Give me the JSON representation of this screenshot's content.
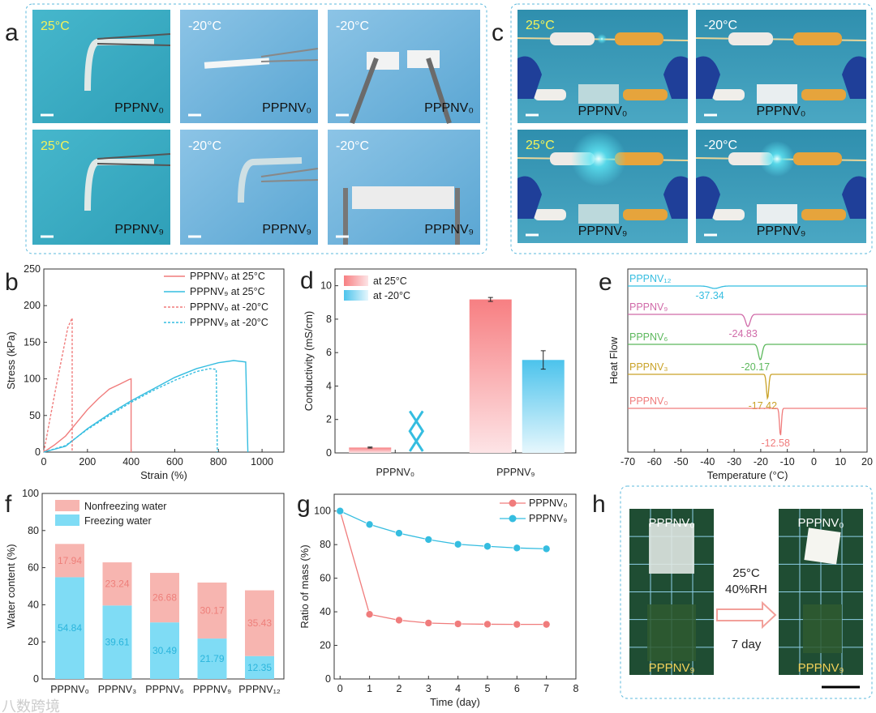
{
  "panel_letters": {
    "a": "a",
    "b": "b",
    "c": "c",
    "d": "d",
    "e": "e",
    "f": "f",
    "g": "g",
    "h": "h"
  },
  "panel_a": {
    "photos": [
      {
        "temp": "25°C",
        "sample": "PPPNV₀"
      },
      {
        "temp": "-20°C",
        "sample": "PPPNV₀"
      },
      {
        "temp": "-20°C",
        "sample": "PPPNV₀"
      },
      {
        "temp": "25°C",
        "sample": "PPPNV₉"
      },
      {
        "temp": "-20°C",
        "sample": "PPPNV₉"
      },
      {
        "temp": "-20°C",
        "sample": "PPPNV₉"
      }
    ]
  },
  "panel_c": {
    "photos": [
      {
        "temp": "25°C",
        "sample": "PPPNV₀"
      },
      {
        "temp": "-20°C",
        "sample": "PPPNV₀"
      },
      {
        "temp": "25°C",
        "sample": "PPPNV₉"
      },
      {
        "temp": "-20°C",
        "sample": "PPPNV₉"
      }
    ]
  },
  "panel_h": {
    "left_top": "PPPNV₀",
    "left_bottom": "PPPNV₉",
    "right_top": "PPPNV₀",
    "right_bottom": "PPPNV₉",
    "condition_temp": "25°C",
    "condition_rh": "40%RH",
    "duration": "7 day"
  },
  "watermark": "八数跨境",
  "colors": {
    "red": "#f07c7c",
    "blue": "#35bde0",
    "border": "#5bb8dc",
    "pink": "#d06aa8",
    "green": "#5cb85c",
    "gold": "#c9a227"
  },
  "chart_data": [
    {
      "id": "b",
      "type": "line",
      "xlabel": "Strain (%)",
      "ylabel": "Stress (kPa)",
      "xlim": [
        0,
        1100
      ],
      "ylim": [
        0,
        250
      ],
      "xticks": [
        0,
        200,
        400,
        600,
        800,
        1000
      ],
      "yticks": [
        0,
        50,
        100,
        150,
        200,
        250
      ],
      "legend_position": "top-right",
      "series": [
        {
          "name": "PPPNV₀ at 25°C",
          "color": "#f07c7c",
          "dash": false,
          "x": [
            0,
            50,
            100,
            150,
            200,
            250,
            300,
            350,
            390,
            400,
            400
          ],
          "y": [
            0,
            10,
            22,
            40,
            58,
            73,
            86,
            93,
            99,
            100,
            0
          ]
        },
        {
          "name": "PPPNV₉ at 25°C",
          "color": "#35bde0",
          "dash": false,
          "x": [
            0,
            100,
            200,
            300,
            400,
            500,
            600,
            700,
            800,
            870,
            925,
            935
          ],
          "y": [
            0,
            8,
            32,
            52,
            70,
            86,
            102,
            114,
            122,
            125,
            123,
            0
          ]
        },
        {
          "name": "PPPNV₀ at -20°C",
          "color": "#f07c7c",
          "dash": true,
          "x": [
            0,
            30,
            60,
            90,
            110,
            125,
            130,
            130
          ],
          "y": [
            0,
            48,
            95,
            140,
            170,
            180,
            183,
            0
          ]
        },
        {
          "name": "PPPNV₉ at -20°C",
          "color": "#35bde0",
          "dash": true,
          "x": [
            0,
            100,
            200,
            300,
            400,
            500,
            600,
            700,
            760,
            790,
            795
          ],
          "y": [
            0,
            9,
            31,
            50,
            68,
            84,
            98,
            110,
            114,
            113,
            0
          ]
        }
      ]
    },
    {
      "id": "d",
      "type": "bar",
      "ylabel": "Conductivity (mS/cm)",
      "ylim": [
        0,
        11
      ],
      "yticks": [
        0,
        2,
        4,
        6,
        8,
        10
      ],
      "categories": [
        "PPPNV₀",
        "PPPNV₉"
      ],
      "legend_position": "top-left",
      "series": [
        {
          "name": "at 25°C",
          "color": "#f07c7c",
          "values": [
            0.32,
            9.18
          ],
          "errors": [
            0.03,
            0.12
          ]
        },
        {
          "name": "at -20°C",
          "color": "#35bde0",
          "values": [
            null,
            5.56
          ],
          "errors": [
            null,
            0.55
          ]
        }
      ],
      "annotations": [
        "X (not measurable) for PPPNV₀ at -20°C"
      ]
    },
    {
      "id": "e",
      "type": "line",
      "xlabel": "Temperature (°C)",
      "ylabel": "Heat Flow",
      "xlim": [
        -70,
        20
      ],
      "xticks": [
        -70,
        -60,
        -50,
        -40,
        -30,
        -20,
        -10,
        0,
        10,
        20
      ],
      "series": [
        {
          "name": "PPPNV₁₂",
          "color": "#35bde0",
          "peak": -37.34,
          "peak_label": "-37.34"
        },
        {
          "name": "PPPNV₉",
          "color": "#d06aa8",
          "peak": -24.83,
          "peak_label": "-24.83"
        },
        {
          "name": "PPPNV₆",
          "color": "#5cb85c",
          "peak": -20.17,
          "peak_label": "-20.17"
        },
        {
          "name": "PPPNV₃",
          "color": "#c9a227",
          "peak": -17.42,
          "peak_label": "-17.42"
        },
        {
          "name": "PPPNV₀",
          "color": "#f07c7c",
          "peak": -12.58,
          "peak_label": "-12.58"
        }
      ]
    },
    {
      "id": "f",
      "type": "bar",
      "stacked": true,
      "ylabel": "Water content (%)",
      "ylim": [
        0,
        100
      ],
      "yticks": [
        0,
        20,
        40,
        60,
        80,
        100
      ],
      "categories": [
        "PPPNV₀",
        "PPPNV₃",
        "PPPNV₆",
        "PPPNV₉",
        "PPPNV₁₂"
      ],
      "legend_position": "top-left",
      "series": [
        {
          "name": "Freezing water",
          "color": "#7fdcf5",
          "values": [
            54.84,
            39.61,
            30.49,
            21.79,
            12.35
          ],
          "labels": [
            "54.84",
            "39.61",
            "30.49",
            "21.79",
            "12.35"
          ]
        },
        {
          "name": "Nonfreezing water",
          "color": "#f7b5b0",
          "values": [
            17.94,
            23.24,
            26.68,
            30.17,
            35.43
          ],
          "labels": [
            "17.94",
            "23.24",
            "26.68",
            "30.17",
            "35.43"
          ]
        }
      ]
    },
    {
      "id": "g",
      "type": "line",
      "xlabel": "Time (day)",
      "ylabel": "Ratio of mass (%)",
      "xlim": [
        -0.2,
        8
      ],
      "ylim": [
        0,
        110
      ],
      "xticks": [
        0,
        1,
        2,
        3,
        4,
        5,
        6,
        7,
        8
      ],
      "yticks": [
        0,
        20,
        40,
        60,
        80,
        100
      ],
      "legend_position": "top-right",
      "series": [
        {
          "name": "PPPNV₀",
          "color": "#f07c7c",
          "x": [
            0,
            1,
            2,
            3,
            4,
            5,
            6,
            7
          ],
          "y": [
            100,
            38.5,
            35,
            33.3,
            32.8,
            32.6,
            32.5,
            32.5
          ]
        },
        {
          "name": "PPPNV₉",
          "color": "#35bde0",
          "x": [
            0,
            1,
            2,
            3,
            4,
            5,
            6,
            7
          ],
          "y": [
            100,
            92,
            86.8,
            83,
            80.2,
            79,
            78,
            77.5
          ]
        }
      ]
    }
  ]
}
